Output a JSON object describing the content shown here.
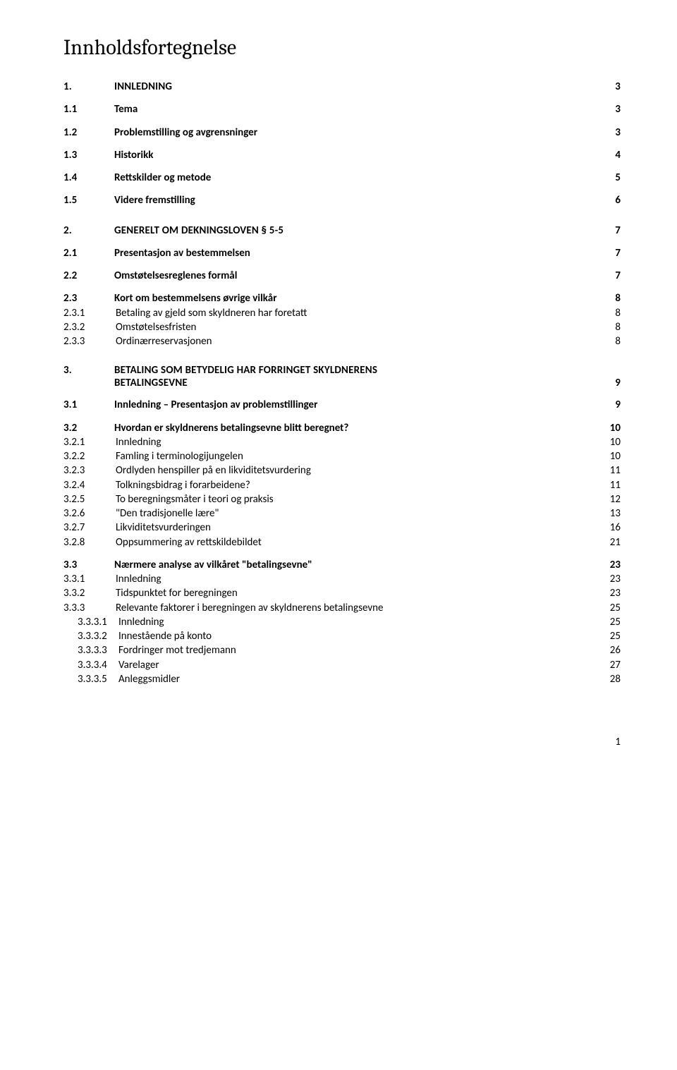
{
  "title": "Innholdsfortegnelse",
  "pageNumber": "1",
  "s1": {
    "num": "1.",
    "label": "INNLEDNING",
    "page": "3",
    "i1": {
      "num": "1.1",
      "label": "Tema",
      "page": "3"
    },
    "i2": {
      "num": "1.2",
      "label": "Problemstilling og avgrensninger",
      "page": "3"
    },
    "i3": {
      "num": "1.3",
      "label": "Historikk",
      "page": "4"
    },
    "i4": {
      "num": "1.4",
      "label": "Rettskilder og metode",
      "page": "5"
    },
    "i5": {
      "num": "1.5",
      "label": "Videre fremstilling",
      "page": "6"
    }
  },
  "s2": {
    "num": "2.",
    "label": "GENERELT OM DEKNINGSLOVEN § 5-5",
    "page": "7",
    "i1": {
      "num": "2.1",
      "label": "Presentasjon av bestemmelsen",
      "page": "7"
    },
    "i2": {
      "num": "2.2",
      "label": "Omstøtelsesreglenes formål",
      "page": "7"
    },
    "i3": {
      "num": "2.3",
      "label": "Kort om bestemmelsens øvrige vilkår",
      "page": "8",
      "j1": {
        "num": "2.3.1",
        "label": "Betaling av gjeld som skyldneren har foretatt",
        "page": "8"
      },
      "j2": {
        "num": "2.3.2",
        "label": "Omstøtelsesfristen",
        "page": "8"
      },
      "j3": {
        "num": "2.3.3",
        "label": "Ordinærreservasjonen",
        "page": "8"
      }
    }
  },
  "s3": {
    "num": "3.",
    "line1": "BETALING SOM BETYDELIG HAR FORRINGET SKYLDNERENS",
    "line2": "BETALINGSEVNE",
    "page": "9",
    "i1": {
      "num": "3.1",
      "label": "Innledning – Presentasjon av problemstillinger",
      "page": "9"
    },
    "i2": {
      "num": "3.2",
      "label": "Hvordan er skyldnerens betalingsevne blitt beregnet?",
      "page": "10",
      "j1": {
        "num": "3.2.1",
        "label": "Innledning",
        "page": "10"
      },
      "j2": {
        "num": "3.2.2",
        "label": "Famling i terminologijungelen",
        "page": "10"
      },
      "j3": {
        "num": "3.2.3",
        "label": "Ordlyden henspiller på en likviditetsvurdering",
        "page": "11"
      },
      "j4": {
        "num": "3.2.4",
        "label": "Tolkningsbidrag i forarbeidene?",
        "page": "11"
      },
      "j5": {
        "num": "3.2.5",
        "label": "To beregningsmåter i teori og praksis",
        "page": "12"
      },
      "j6": {
        "num": "3.2.6",
        "label": "\"Den tradisjonelle lære\"",
        "page": "13"
      },
      "j7": {
        "num": "3.2.7",
        "label": "Likviditetsvurderingen",
        "page": "16"
      },
      "j8": {
        "num": "3.2.8",
        "label": "Oppsummering av rettskildebildet",
        "page": "21"
      }
    },
    "i3": {
      "num": "3.3",
      "label": "Nærmere analyse av vilkåret \"betalingsevne\"",
      "page": "23",
      "j1": {
        "num": "3.3.1",
        "label": "Innledning",
        "page": "23"
      },
      "j2": {
        "num": "3.3.2",
        "label": "Tidspunktet for beregningen",
        "page": "23"
      },
      "j3": {
        "num": "3.3.3",
        "label": "Relevante faktorer i beregningen av skyldnerens betalingsevne",
        "page": "25",
        "k1": {
          "num": "3.3.3.1",
          "label": "Innledning",
          "page": "25"
        },
        "k2": {
          "num": "3.3.3.2",
          "label": "Innestående på konto",
          "page": "25"
        },
        "k3": {
          "num": "3.3.3.3",
          "label": "Fordringer mot tredjemann",
          "page": "26"
        },
        "k4": {
          "num": "3.3.3.4",
          "label": "Varelager",
          "page": "27"
        },
        "k5": {
          "num": "3.3.3.5",
          "label": "Anleggsmidler",
          "page": "28"
        }
      }
    }
  }
}
